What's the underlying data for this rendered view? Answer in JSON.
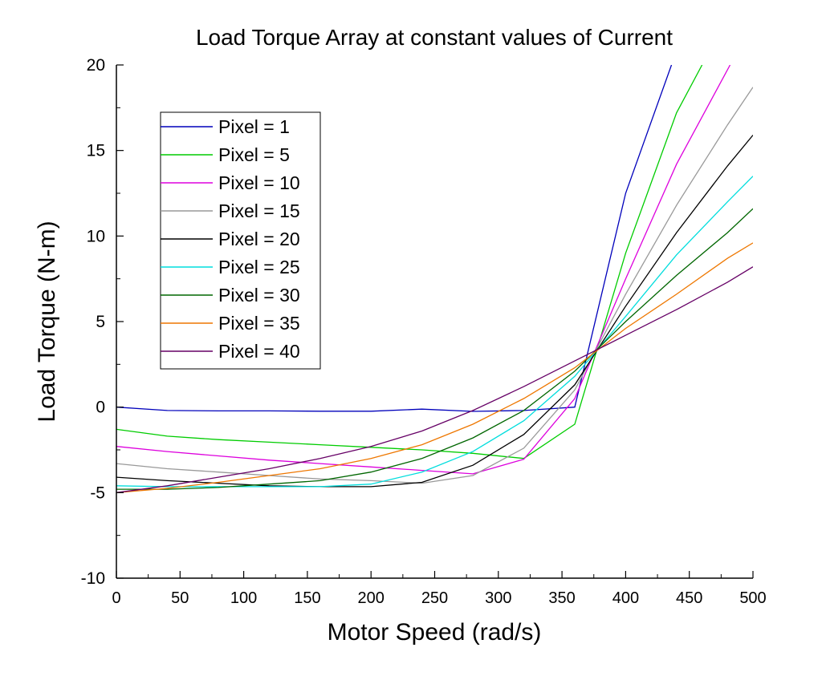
{
  "chart_data": {
    "type": "line",
    "title": "Load Torque Array at constant values of Current",
    "xlabel": "Motor Speed (rad/s)",
    "ylabel": "Load Torque (N-m)",
    "xlim": [
      0,
      500
    ],
    "ylim": [
      -10,
      20
    ],
    "x_ticks": [
      "0",
      "50",
      "100",
      "150",
      "200",
      "250",
      "300",
      "350",
      "400",
      "450",
      "500"
    ],
    "y_ticks": [
      "-10",
      "-5",
      "0",
      "5",
      "10",
      "15",
      "20"
    ],
    "grid": false,
    "legend_position": "top-left",
    "series": [
      {
        "name": "Pixel = 1",
        "color": "#0000bb",
        "points": [
          [
            0,
            0
          ],
          [
            40,
            -0.2
          ],
          [
            80,
            -0.22
          ],
          [
            120,
            -0.22
          ],
          [
            160,
            -0.24
          ],
          [
            200,
            -0.24
          ],
          [
            240,
            -0.12
          ],
          [
            280,
            -0.25
          ],
          [
            320,
            -0.2
          ],
          [
            360,
            0
          ],
          [
            400,
            12.5
          ],
          [
            436,
            20
          ]
        ]
      },
      {
        "name": "Pixel = 5",
        "color": "#00cc00",
        "points": [
          [
            0,
            -1.3
          ],
          [
            40,
            -1.7
          ],
          [
            80,
            -1.9
          ],
          [
            120,
            -2.05
          ],
          [
            160,
            -2.2
          ],
          [
            200,
            -2.35
          ],
          [
            240,
            -2.5
          ],
          [
            280,
            -2.7
          ],
          [
            320,
            -3.0
          ],
          [
            360,
            -1.0
          ],
          [
            400,
            9.0
          ],
          [
            440,
            17.2
          ],
          [
            460,
            20
          ]
        ]
      },
      {
        "name": "Pixel = 10",
        "color": "#dd00dd",
        "points": [
          [
            0,
            -2.3
          ],
          [
            40,
            -2.6
          ],
          [
            80,
            -2.85
          ],
          [
            120,
            -3.1
          ],
          [
            160,
            -3.3
          ],
          [
            200,
            -3.5
          ],
          [
            240,
            -3.7
          ],
          [
            280,
            -3.9
          ],
          [
            320,
            -3.05
          ],
          [
            360,
            0.5
          ],
          [
            400,
            7.5
          ],
          [
            440,
            14.2
          ],
          [
            482,
            20
          ]
        ]
      },
      {
        "name": "Pixel = 15",
        "color": "#999999",
        "points": [
          [
            0,
            -3.3
          ],
          [
            40,
            -3.6
          ],
          [
            80,
            -3.8
          ],
          [
            120,
            -4.0
          ],
          [
            160,
            -4.2
          ],
          [
            200,
            -4.3
          ],
          [
            240,
            -4.45
          ],
          [
            280,
            -4.0
          ],
          [
            320,
            -2.4
          ],
          [
            360,
            1.0
          ],
          [
            400,
            6.6
          ],
          [
            440,
            11.8
          ],
          [
            480,
            16.5
          ],
          [
            500,
            18.7
          ]
        ]
      },
      {
        "name": "Pixel = 20",
        "color": "#000000",
        "points": [
          [
            0,
            -4.1
          ],
          [
            40,
            -4.3
          ],
          [
            80,
            -4.45
          ],
          [
            120,
            -4.6
          ],
          [
            160,
            -4.65
          ],
          [
            200,
            -4.65
          ],
          [
            240,
            -4.4
          ],
          [
            280,
            -3.4
          ],
          [
            320,
            -1.6
          ],
          [
            360,
            1.3
          ],
          [
            400,
            5.9
          ],
          [
            440,
            10.2
          ],
          [
            480,
            14.1
          ],
          [
            500,
            15.9
          ]
        ]
      },
      {
        "name": "Pixel = 25",
        "color": "#00dddd",
        "points": [
          [
            0,
            -4.6
          ],
          [
            40,
            -4.65
          ],
          [
            80,
            -4.65
          ],
          [
            120,
            -4.65
          ],
          [
            160,
            -4.65
          ],
          [
            200,
            -4.5
          ],
          [
            240,
            -3.8
          ],
          [
            280,
            -2.6
          ],
          [
            320,
            -0.8
          ],
          [
            360,
            1.8
          ],
          [
            400,
            5.3
          ],
          [
            440,
            8.9
          ],
          [
            480,
            12.0
          ],
          [
            500,
            13.5
          ]
        ]
      },
      {
        "name": "Pixel = 30",
        "color": "#006600",
        "points": [
          [
            0,
            -4.8
          ],
          [
            40,
            -4.8
          ],
          [
            80,
            -4.7
          ],
          [
            120,
            -4.5
          ],
          [
            160,
            -4.3
          ],
          [
            200,
            -3.8
          ],
          [
            240,
            -3.0
          ],
          [
            280,
            -1.8
          ],
          [
            320,
            -0.2
          ],
          [
            360,
            2.1
          ],
          [
            400,
            5.0
          ],
          [
            440,
            7.7
          ],
          [
            480,
            10.2
          ],
          [
            500,
            11.6
          ]
        ]
      },
      {
        "name": "Pixel = 35",
        "color": "#ee7700",
        "points": [
          [
            0,
            -5.0
          ],
          [
            40,
            -4.75
          ],
          [
            80,
            -4.4
          ],
          [
            120,
            -4.0
          ],
          [
            160,
            -3.6
          ],
          [
            200,
            -3.0
          ],
          [
            240,
            -2.2
          ],
          [
            280,
            -1.0
          ],
          [
            320,
            0.5
          ],
          [
            360,
            2.3
          ],
          [
            400,
            4.6
          ],
          [
            440,
            6.6
          ],
          [
            480,
            8.7
          ],
          [
            500,
            9.6
          ]
        ]
      },
      {
        "name": "Pixel = 40",
        "color": "#660066",
        "points": [
          [
            0,
            -5.0
          ],
          [
            40,
            -4.6
          ],
          [
            80,
            -4.1
          ],
          [
            120,
            -3.6
          ],
          [
            160,
            -3.0
          ],
          [
            200,
            -2.3
          ],
          [
            240,
            -1.4
          ],
          [
            280,
            -0.2
          ],
          [
            320,
            1.2
          ],
          [
            360,
            2.7
          ],
          [
            400,
            4.2
          ],
          [
            440,
            5.7
          ],
          [
            480,
            7.3
          ],
          [
            500,
            8.2
          ]
        ]
      }
    ]
  }
}
